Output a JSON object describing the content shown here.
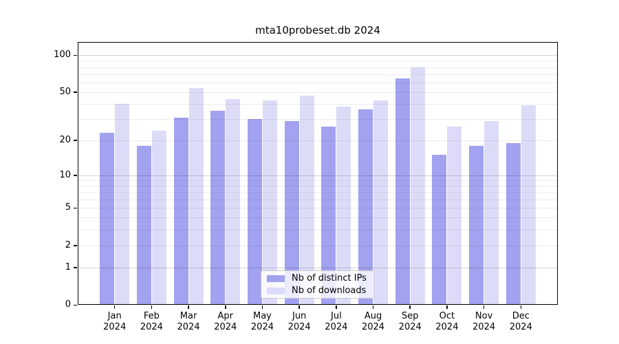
{
  "chart_data": {
    "type": "bar",
    "title": "mta10probeset.db 2024",
    "categories": [
      "Jan 2024",
      "Feb 2024",
      "Mar 2024",
      "Apr 2024",
      "May 2024",
      "Jun 2024",
      "Jul 2024",
      "Aug 2024",
      "Sep 2024",
      "Oct 2024",
      "Nov 2024",
      "Dec 2024"
    ],
    "series": [
      {
        "name": "Nb of distinct IPs",
        "color": "#a2a2f0",
        "values": [
          23,
          18,
          31,
          35,
          30,
          29,
          26,
          36,
          65,
          15,
          18,
          19
        ]
      },
      {
        "name": "Nb of downloads",
        "color": "#dcdcf8",
        "values": [
          40,
          24,
          54,
          44,
          43,
          47,
          38,
          43,
          80,
          26,
          29,
          39
        ]
      }
    ],
    "xlabel": "",
    "ylabel": "",
    "yscale": "log1p",
    "ylim": [
      0,
      128
    ],
    "yticks": [
      100,
      50,
      20,
      10,
      5,
      2,
      1,
      0
    ],
    "grid": "horizontal",
    "gridlines_minor": [
      2,
      3,
      4,
      5,
      6,
      7,
      8,
      9,
      20,
      30,
      40,
      50,
      60,
      70,
      80,
      90
    ],
    "gridlines_major": [
      1,
      10,
      100
    ],
    "legend_position": "lower-center-inside"
  }
}
